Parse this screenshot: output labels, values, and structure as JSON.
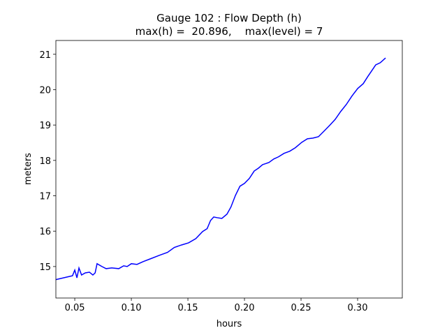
{
  "chart_data": {
    "type": "line",
    "title": "Gauge 102 : Flow Depth (h)",
    "subtitle": "max(h) =  20.896,    max(level) = 7",
    "xlabel": "hours",
    "ylabel": "meters",
    "x": [
      0.0333,
      0.0426,
      0.048,
      0.05,
      0.0519,
      0.0537,
      0.056,
      0.0593,
      0.063,
      0.066,
      0.068,
      0.0697,
      0.074,
      0.0777,
      0.0827,
      0.0889,
      0.0932,
      0.0963,
      0.1,
      0.105,
      0.1105,
      0.117,
      0.125,
      0.132,
      0.138,
      0.1444,
      0.1506,
      0.157,
      0.163,
      0.167,
      0.17,
      0.1728,
      0.176,
      0.18,
      0.1845,
      0.188,
      0.192,
      0.196,
      0.2,
      0.2043,
      0.2086,
      0.2123,
      0.216,
      0.2216,
      0.2259,
      0.23,
      0.235,
      0.24,
      0.245,
      0.2506,
      0.2556,
      0.2605,
      0.2654,
      0.2704,
      0.2753,
      0.2802,
      0.285,
      0.29,
      0.295,
      0.3,
      0.305,
      0.309,
      0.312,
      0.316,
      0.32,
      0.3247
    ],
    "series": [
      {
        "name": "h",
        "color": "#0000ff",
        "values": [
          14.63,
          14.7,
          14.74,
          14.9,
          14.68,
          14.96,
          14.76,
          14.82,
          14.84,
          14.76,
          14.82,
          15.08,
          15.0,
          14.94,
          14.96,
          14.94,
          15.02,
          15.0,
          15.08,
          15.06,
          15.14,
          15.22,
          15.32,
          15.4,
          15.54,
          15.61,
          15.67,
          15.79,
          15.99,
          16.07,
          16.3,
          16.4,
          16.38,
          16.36,
          16.48,
          16.68,
          17.01,
          17.27,
          17.35,
          17.49,
          17.7,
          17.78,
          17.88,
          17.94,
          18.04,
          18.1,
          18.2,
          18.26,
          18.36,
          18.51,
          18.61,
          18.63,
          18.67,
          18.83,
          18.99,
          19.16,
          19.38,
          19.58,
          19.82,
          20.03,
          20.17,
          20.37,
          20.51,
          20.7,
          20.76,
          20.896
        ]
      }
    ],
    "xlim": [
      0.0333,
      0.3395
    ],
    "ylim": [
      14.11,
      21.39
    ],
    "xticks": [
      0.05,
      {
        "value": 0.1,
        "label": "0.10"
      },
      0.15,
      {
        "value": 0.2,
        "label": "0.20"
      },
      0.25,
      {
        "value": 0.3,
        "label": "0.30"
      }
    ],
    "yticks": [
      15,
      16,
      17,
      18,
      19,
      20,
      21
    ]
  }
}
